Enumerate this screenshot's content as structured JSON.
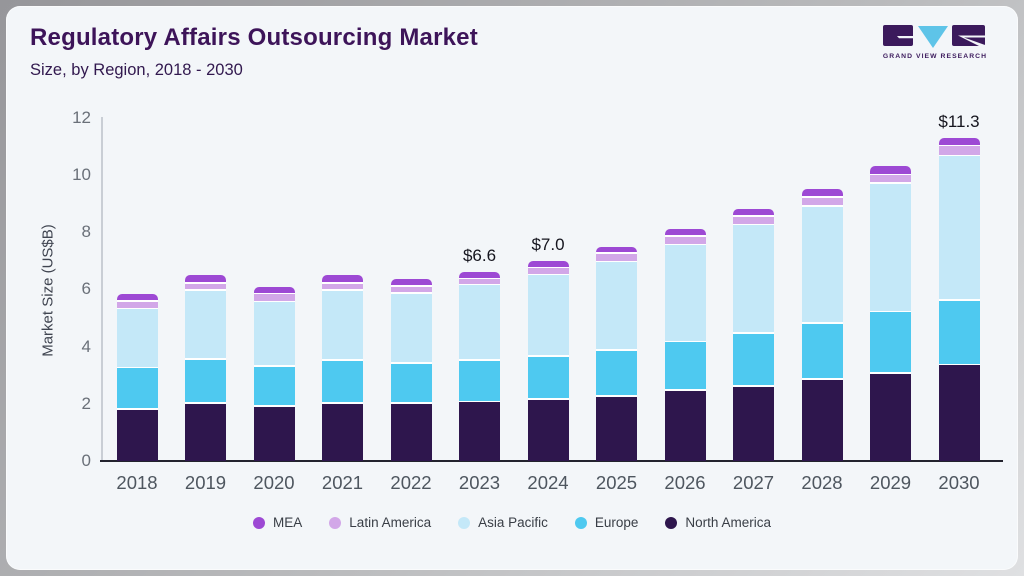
{
  "header": {
    "title": "Regulatory Affairs Outsourcing Market",
    "subtitle": "Size, by Region, 2018 - 2030",
    "logo": {
      "text": "GRAND VIEW RESEARCH"
    }
  },
  "chart_data": {
    "type": "bar",
    "stacked": true,
    "title": "Regulatory Affairs Outsourcing Market Size, by Region, 2018 - 2030",
    "xlabel": "",
    "ylabel": "Market Size (US$B)",
    "ylim": [
      0,
      12
    ],
    "yticks": [
      0,
      2,
      4,
      6,
      8,
      10,
      12
    ],
    "grid": false,
    "legend_position": "bottom",
    "categories": [
      "2018",
      "2019",
      "2020",
      "2021",
      "2022",
      "2023",
      "2024",
      "2025",
      "2026",
      "2027",
      "2028",
      "2029",
      "2030"
    ],
    "series": [
      {
        "name": "North America",
        "color": "#2e164d",
        "values": [
          1.85,
          2.05,
          1.95,
          2.05,
          2.05,
          2.1,
          2.2,
          2.3,
          2.5,
          2.65,
          2.9,
          3.1,
          3.4
        ]
      },
      {
        "name": "Europe",
        "color": "#4ec9f0",
        "values": [
          1.45,
          1.55,
          1.4,
          1.5,
          1.4,
          1.45,
          1.5,
          1.6,
          1.7,
          1.85,
          1.95,
          2.15,
          2.25
        ]
      },
      {
        "name": "Asia Pacific",
        "color": "#c4e8f8",
        "values": [
          2.05,
          2.4,
          2.25,
          2.45,
          2.45,
          2.65,
          2.85,
          3.1,
          3.4,
          3.8,
          4.1,
          4.5,
          5.05
        ]
      },
      {
        "name": "Latin America",
        "color": "#d2a7e8",
        "values": [
          0.27,
          0.25,
          0.28,
          0.25,
          0.25,
          0.2,
          0.25,
          0.3,
          0.3,
          0.3,
          0.3,
          0.3,
          0.35
        ]
      },
      {
        "name": "MEA",
        "color": "#9d49d4",
        "values": [
          0.23,
          0.25,
          0.22,
          0.25,
          0.2,
          0.2,
          0.2,
          0.2,
          0.2,
          0.2,
          0.25,
          0.25,
          0.25
        ]
      }
    ],
    "totals": [
      5.85,
      6.5,
      6.1,
      6.5,
      6.35,
      6.6,
      7.0,
      7.5,
      8.1,
      8.8,
      9.5,
      10.3,
      11.3
    ],
    "annotations": [
      {
        "category": "2023",
        "text": "$6.6"
      },
      {
        "category": "2024",
        "text": "$7.0"
      },
      {
        "category": "2030",
        "text": "$11.3"
      }
    ],
    "legend_order": [
      "MEA",
      "Latin America",
      "Asia Pacific",
      "Europe",
      "North America"
    ]
  }
}
